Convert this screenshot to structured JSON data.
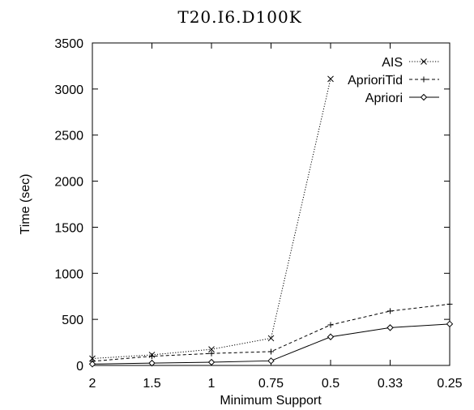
{
  "chart_data": {
    "type": "line",
    "title": "T20.I6.D100K",
    "xlabel": "Minimum Support",
    "ylabel": "Time (sec)",
    "categories": [
      "2",
      "1.5",
      "1",
      "0.75",
      "0.5",
      "0.33",
      "0.25"
    ],
    "ylim": [
      0,
      3500
    ],
    "yticks": [
      "0",
      "500",
      "1000",
      "1500",
      "2000",
      "2500",
      "3000",
      "3500"
    ],
    "grid": false,
    "legend_position": "top-right",
    "series": [
      {
        "name": "AIS",
        "marker": "x",
        "line_style": "dotted",
        "values": [
          75,
          115,
          175,
          295,
          3110,
          null,
          null
        ]
      },
      {
        "name": "AprioriTid",
        "marker": "+",
        "line_style": "dashed",
        "values": [
          45,
          100,
          130,
          150,
          440,
          590,
          665
        ]
      },
      {
        "name": "Apriori",
        "marker": "diamond",
        "line_style": "solid",
        "values": [
          15,
          25,
          35,
          50,
          310,
          410,
          450
        ]
      }
    ]
  }
}
